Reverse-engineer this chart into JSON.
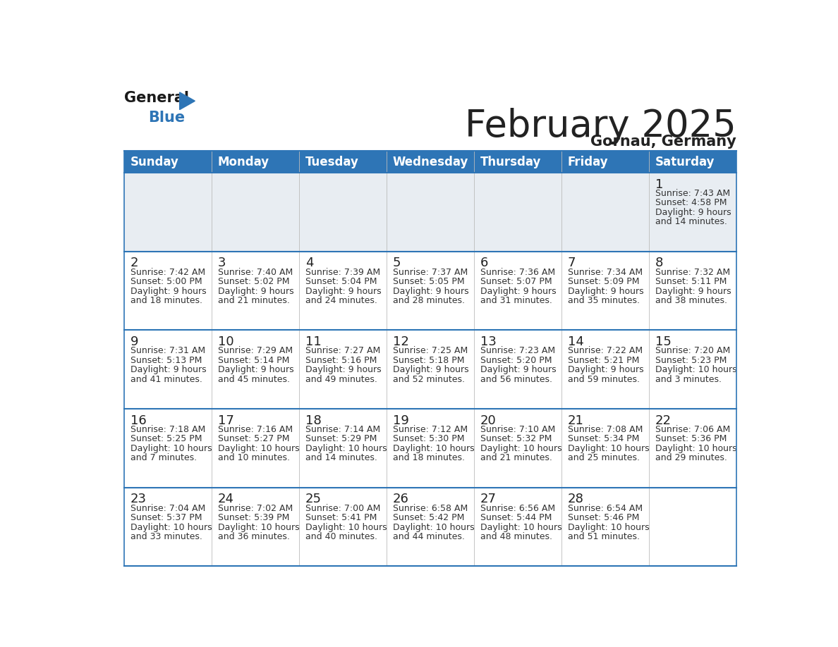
{
  "title": "February 2025",
  "subtitle": "Gornau, Germany",
  "header_color": "#2e75b6",
  "header_text_color": "#ffffff",
  "weekdays": [
    "Sunday",
    "Monday",
    "Tuesday",
    "Wednesday",
    "Thursday",
    "Friday",
    "Saturday"
  ],
  "bg_color": "#ffffff",
  "row0_bg_color": "#e8edf2",
  "cell_border_color": "#2e75b6",
  "day_number_color": "#222222",
  "info_text_color": "#333333",
  "days": [
    {
      "day": 1,
      "col": 6,
      "row": 0,
      "sunrise": "7:43 AM",
      "sunset": "4:58 PM",
      "daylight": "9 hours and 14 minutes."
    },
    {
      "day": 2,
      "col": 0,
      "row": 1,
      "sunrise": "7:42 AM",
      "sunset": "5:00 PM",
      "daylight": "9 hours and 18 minutes."
    },
    {
      "day": 3,
      "col": 1,
      "row": 1,
      "sunrise": "7:40 AM",
      "sunset": "5:02 PM",
      "daylight": "9 hours and 21 minutes."
    },
    {
      "day": 4,
      "col": 2,
      "row": 1,
      "sunrise": "7:39 AM",
      "sunset": "5:04 PM",
      "daylight": "9 hours and 24 minutes."
    },
    {
      "day": 5,
      "col": 3,
      "row": 1,
      "sunrise": "7:37 AM",
      "sunset": "5:05 PM",
      "daylight": "9 hours and 28 minutes."
    },
    {
      "day": 6,
      "col": 4,
      "row": 1,
      "sunrise": "7:36 AM",
      "sunset": "5:07 PM",
      "daylight": "9 hours and 31 minutes."
    },
    {
      "day": 7,
      "col": 5,
      "row": 1,
      "sunrise": "7:34 AM",
      "sunset": "5:09 PM",
      "daylight": "9 hours and 35 minutes."
    },
    {
      "day": 8,
      "col": 6,
      "row": 1,
      "sunrise": "7:32 AM",
      "sunset": "5:11 PM",
      "daylight": "9 hours and 38 minutes."
    },
    {
      "day": 9,
      "col": 0,
      "row": 2,
      "sunrise": "7:31 AM",
      "sunset": "5:13 PM",
      "daylight": "9 hours and 41 minutes."
    },
    {
      "day": 10,
      "col": 1,
      "row": 2,
      "sunrise": "7:29 AM",
      "sunset": "5:14 PM",
      "daylight": "9 hours and 45 minutes."
    },
    {
      "day": 11,
      "col": 2,
      "row": 2,
      "sunrise": "7:27 AM",
      "sunset": "5:16 PM",
      "daylight": "9 hours and 49 minutes."
    },
    {
      "day": 12,
      "col": 3,
      "row": 2,
      "sunrise": "7:25 AM",
      "sunset": "5:18 PM",
      "daylight": "9 hours and 52 minutes."
    },
    {
      "day": 13,
      "col": 4,
      "row": 2,
      "sunrise": "7:23 AM",
      "sunset": "5:20 PM",
      "daylight": "9 hours and 56 minutes."
    },
    {
      "day": 14,
      "col": 5,
      "row": 2,
      "sunrise": "7:22 AM",
      "sunset": "5:21 PM",
      "daylight": "9 hours and 59 minutes."
    },
    {
      "day": 15,
      "col": 6,
      "row": 2,
      "sunrise": "7:20 AM",
      "sunset": "5:23 PM",
      "daylight": "10 hours and 3 minutes."
    },
    {
      "day": 16,
      "col": 0,
      "row": 3,
      "sunrise": "7:18 AM",
      "sunset": "5:25 PM",
      "daylight": "10 hours and 7 minutes."
    },
    {
      "day": 17,
      "col": 1,
      "row": 3,
      "sunrise": "7:16 AM",
      "sunset": "5:27 PM",
      "daylight": "10 hours and 10 minutes."
    },
    {
      "day": 18,
      "col": 2,
      "row": 3,
      "sunrise": "7:14 AM",
      "sunset": "5:29 PM",
      "daylight": "10 hours and 14 minutes."
    },
    {
      "day": 19,
      "col": 3,
      "row": 3,
      "sunrise": "7:12 AM",
      "sunset": "5:30 PM",
      "daylight": "10 hours and 18 minutes."
    },
    {
      "day": 20,
      "col": 4,
      "row": 3,
      "sunrise": "7:10 AM",
      "sunset": "5:32 PM",
      "daylight": "10 hours and 21 minutes."
    },
    {
      "day": 21,
      "col": 5,
      "row": 3,
      "sunrise": "7:08 AM",
      "sunset": "5:34 PM",
      "daylight": "10 hours and 25 minutes."
    },
    {
      "day": 22,
      "col": 6,
      "row": 3,
      "sunrise": "7:06 AM",
      "sunset": "5:36 PM",
      "daylight": "10 hours and 29 minutes."
    },
    {
      "day": 23,
      "col": 0,
      "row": 4,
      "sunrise": "7:04 AM",
      "sunset": "5:37 PM",
      "daylight": "10 hours and 33 minutes."
    },
    {
      "day": 24,
      "col": 1,
      "row": 4,
      "sunrise": "7:02 AM",
      "sunset": "5:39 PM",
      "daylight": "10 hours and 36 minutes."
    },
    {
      "day": 25,
      "col": 2,
      "row": 4,
      "sunrise": "7:00 AM",
      "sunset": "5:41 PM",
      "daylight": "10 hours and 40 minutes."
    },
    {
      "day": 26,
      "col": 3,
      "row": 4,
      "sunrise": "6:58 AM",
      "sunset": "5:42 PM",
      "daylight": "10 hours and 44 minutes."
    },
    {
      "day": 27,
      "col": 4,
      "row": 4,
      "sunrise": "6:56 AM",
      "sunset": "5:44 PM",
      "daylight": "10 hours and 48 minutes."
    },
    {
      "day": 28,
      "col": 5,
      "row": 4,
      "sunrise": "6:54 AM",
      "sunset": "5:46 PM",
      "daylight": "10 hours and 51 minutes."
    }
  ],
  "n_rows": 5,
  "n_cols": 7,
  "title_fontsize": 38,
  "subtitle_fontsize": 15,
  "header_fontsize": 12,
  "day_number_fontsize": 13,
  "info_fontsize": 9,
  "logo_general_color": "#1a1a1a",
  "logo_blue_color": "#2e75b6"
}
